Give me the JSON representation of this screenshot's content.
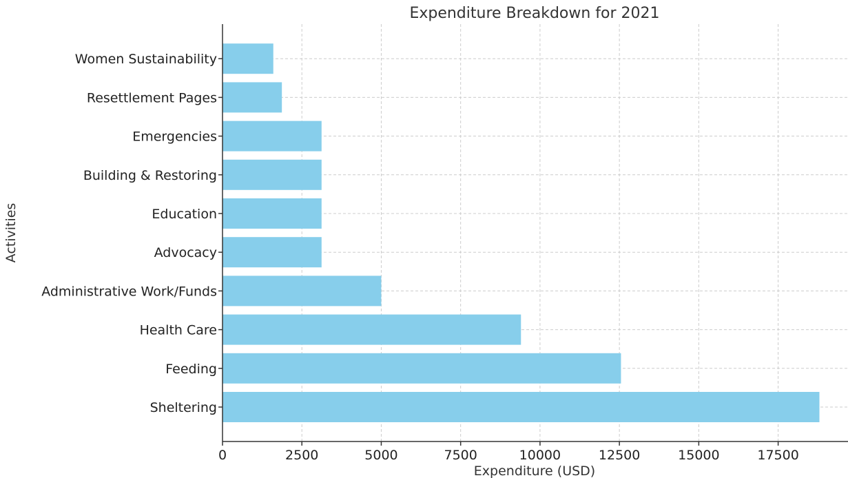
{
  "chart_data": {
    "type": "bar",
    "orientation": "horizontal",
    "title": "Expenditure Breakdown for 2021",
    "xlabel": "Expenditure (USD)",
    "ylabel": "Activities",
    "categories": [
      "Sheltering",
      "Feeding",
      "Health Care",
      "Administrative Work/Funds",
      "Advocacy",
      "Education",
      "Building & Restoring",
      "Emergencies",
      "Resettlement Pages",
      "Women Sustainability"
    ],
    "values": [
      18800,
      12550,
      9400,
      5000,
      3120,
      3120,
      3120,
      3120,
      1870,
      1600
    ],
    "xlim": [
      0,
      19700
    ],
    "xticks": [
      0,
      2500,
      5000,
      7500,
      10000,
      12500,
      15000,
      17500
    ],
    "grid": true,
    "bar_color": "#87ceeb"
  }
}
